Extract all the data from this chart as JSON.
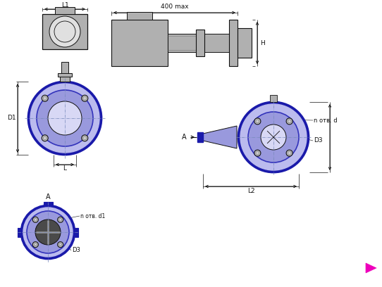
{
  "bg_color": "#ffffff",
  "line_color": "#111111",
  "blue_dark": "#1a1aaa",
  "blue_mid": "#3333bb",
  "blue_light": "#9999dd",
  "blue_fill": "#bbbbee",
  "blue_pale": "#d8d8f5",
  "gray_light": "#cccccc",
  "gray_mid": "#aaaaaa",
  "gray_dark": "#777777",
  "body_gray": "#b0b0b0",
  "magenta": "#ee00bb",
  "dim_color": "#333333",
  "labels": {
    "L1": "L1",
    "L": "L",
    "D1": "D1",
    "L2": "L2",
    "D3": "D3",
    "H": "H",
    "A": "A",
    "n_otv_d": "n отв. d",
    "n_otv_d1": "n отв. d1",
    "400max": "400 max"
  }
}
